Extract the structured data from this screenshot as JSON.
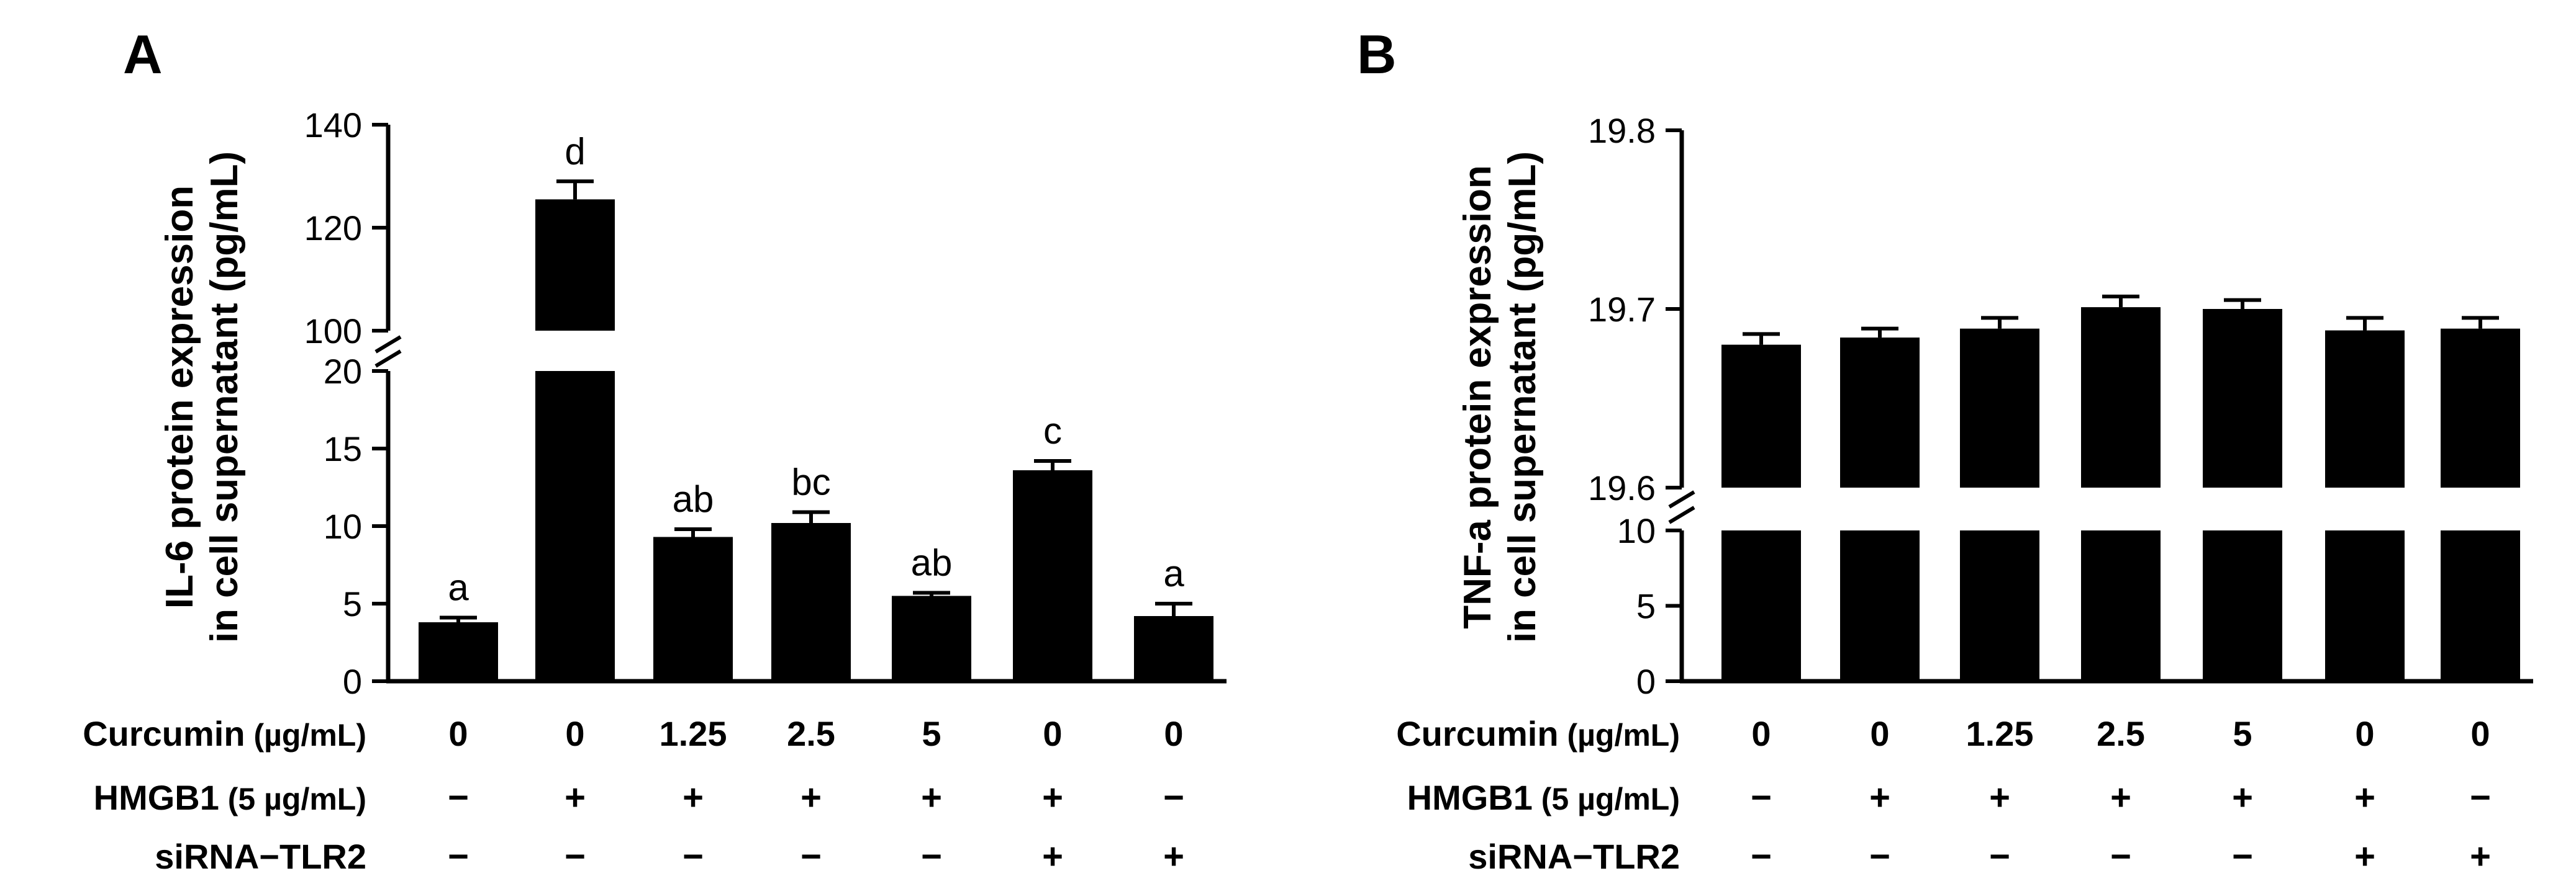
{
  "chart_data": [
    {
      "type": "bar",
      "panel_label": "A",
      "ylabel_lines": [
        "IL-6 protein expression",
        "in cell supernatant (pg/mL)"
      ],
      "y_axis_segments": [
        {
          "range": [
            0,
            20
          ],
          "ticks": [
            0,
            5,
            10,
            15,
            20
          ]
        },
        {
          "range": [
            100,
            140
          ],
          "ticks": [
            100,
            120,
            140
          ]
        }
      ],
      "categories": [
        "1",
        "2",
        "3",
        "4",
        "5",
        "6",
        "7"
      ],
      "values": [
        3.8,
        125.5,
        9.3,
        10.2,
        5.5,
        13.6,
        4.2
      ],
      "error": [
        0.3,
        3.5,
        0.5,
        0.7,
        0.2,
        0.6,
        0.8
      ],
      "significance": [
        "a",
        "d",
        "ab",
        "bc",
        "ab",
        "c",
        "a"
      ]
    },
    {
      "type": "bar",
      "panel_label": "B",
      "ylabel_lines": [
        "TNF-a protein expression",
        "in cell supernatant (pg/mL)"
      ],
      "y_axis_segments": [
        {
          "range": [
            0,
            10
          ],
          "ticks": [
            0,
            5,
            10
          ]
        },
        {
          "range": [
            19.6,
            19.8
          ],
          "ticks": [
            19.6,
            19.7,
            19.8
          ]
        }
      ],
      "categories": [
        "1",
        "2",
        "3",
        "4",
        "5",
        "6",
        "7"
      ],
      "values": [
        19.68,
        19.684,
        19.689,
        19.701,
        19.7,
        19.688,
        19.689
      ],
      "error": [
        0.006,
        0.005,
        0.006,
        0.006,
        0.005,
        0.007,
        0.006
      ],
      "significance": []
    }
  ],
  "conditions": {
    "curcumin": {
      "label": "Curcumin",
      "unit": "(µg/mL)",
      "values": [
        "0",
        "0",
        "1.25",
        "2.5",
        "5",
        "0",
        "0"
      ]
    },
    "hmgb1": {
      "label": "HMGB1",
      "unit": "(5 µg/mL)",
      "values": [
        "−",
        "+",
        "+",
        "+",
        "+",
        "+",
        "−"
      ]
    },
    "sirna": {
      "label": "siRNA−TLR2",
      "values": [
        "−",
        "−",
        "−",
        "−",
        "−",
        "+",
        "+"
      ]
    }
  },
  "colors": {
    "bar": "#000000",
    "axis": "#000000",
    "background": "#ffffff"
  }
}
